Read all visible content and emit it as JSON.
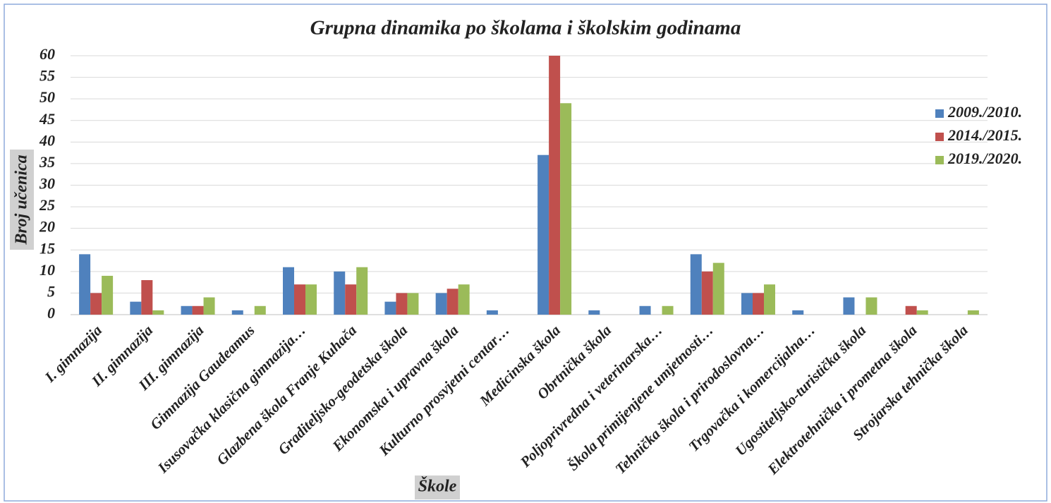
{
  "chart_data": {
    "type": "bar",
    "title": "Grupna dinamika po školama i školskim godinama",
    "x_label": "Škole",
    "y_label": "Broj učenica",
    "categories": [
      "I. gimnazija",
      "II. gimnazija",
      "III. gimnazija",
      "Gimnazija Gaudeamus",
      "Isusovačka klasična gimnazija…",
      "Glazbena škola Franje Kuhača",
      "Graditeljsko-geodetska škola",
      "Ekonomska i upravna škola",
      "Kulturno prosvjetni centar…",
      "Medicinska škola",
      "Obrtnička škola",
      "Poljoprivredna i veterinarska…",
      "Škola primijenjene umjetnosti…",
      "Tehnička škola i prirodoslovna…",
      "Trgovačka i komercijalna…",
      "Ugostiteljsko-turistička škola",
      "Elektrotehnička i prometna škola",
      "Strojarska tehnička škola"
    ],
    "series": [
      {
        "name": "2009./2010.",
        "color": "#4f81bd",
        "values": [
          14,
          3,
          2,
          1,
          11,
          10,
          3,
          5,
          1,
          37,
          1,
          2,
          14,
          5,
          1,
          4,
          0,
          0
        ]
      },
      {
        "name": "2014./2015.",
        "color": "#c0504d",
        "values": [
          5,
          8,
          2,
          0,
          7,
          7,
          5,
          6,
          0,
          60,
          0,
          0,
          10,
          5,
          0,
          0,
          2,
          0
        ]
      },
      {
        "name": "2019./2020.",
        "color": "#9bbb59",
        "values": [
          9,
          1,
          4,
          2,
          7,
          11,
          5,
          7,
          0,
          49,
          0,
          2,
          12,
          7,
          0,
          4,
          1,
          1
        ]
      }
    ],
    "ylim": [
      0,
      60
    ],
    "yticks": [
      0,
      5,
      10,
      15,
      20,
      25,
      30,
      35,
      40,
      45,
      50,
      55,
      60
    ],
    "grid": true,
    "legend": "right"
  }
}
